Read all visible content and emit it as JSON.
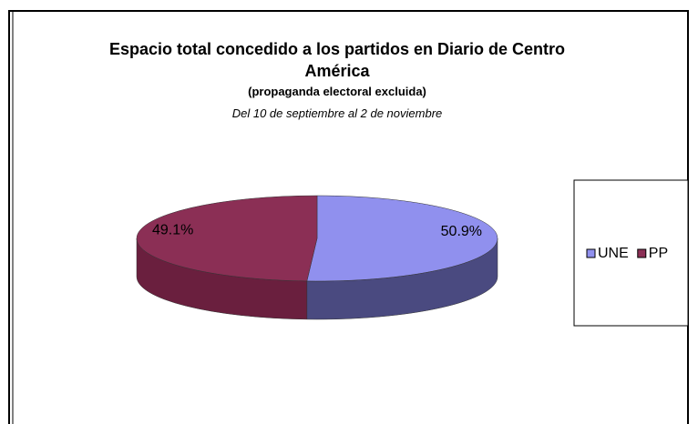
{
  "chart_data": {
    "type": "pie",
    "title": "Espacio total concedido a los partidos en Diario de Centro América",
    "subtitle": "(propaganda electoral excluida)",
    "subtitle2": "Del 10 de septiembre al 2 de noviembre",
    "categories": [
      "UNE",
      "PP"
    ],
    "values": [
      50.9,
      49.1
    ],
    "value_labels": [
      "50.9%",
      "49.1%"
    ],
    "colors": [
      "#9090ee",
      "#8b2f55"
    ],
    "side_colors": [
      "#4a4a80",
      "#6a1f3e"
    ],
    "legend": "right"
  }
}
